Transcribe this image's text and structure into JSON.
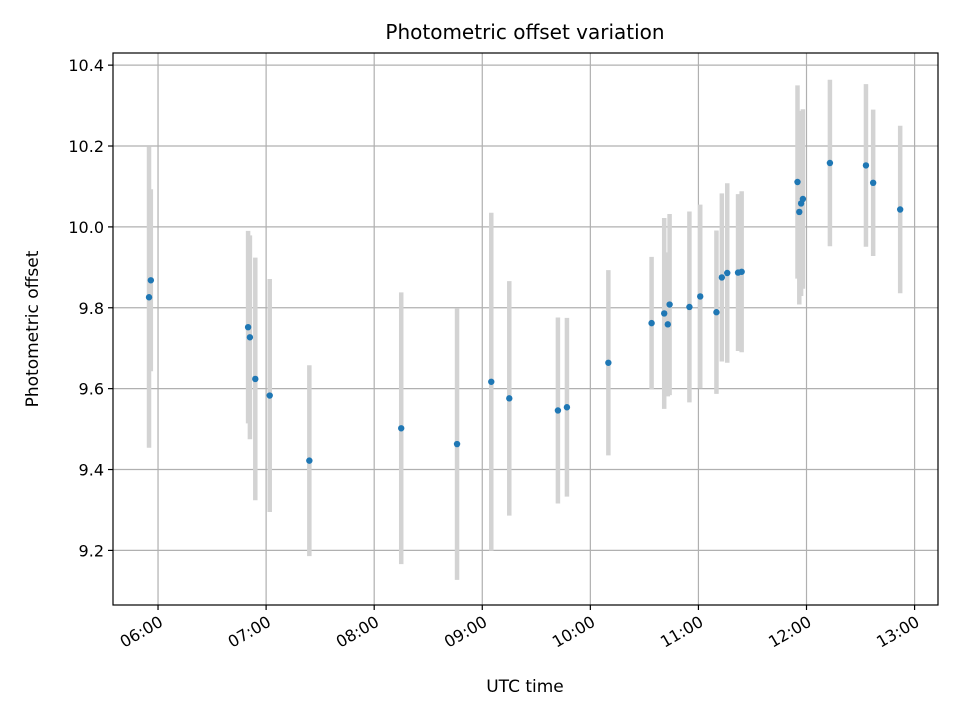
{
  "chart_data": {
    "type": "scatter",
    "title": "Photometric offset variation",
    "xlabel": "UTC time",
    "ylabel": "Photometric offset",
    "xlim": [
      "05:35",
      "13:13"
    ],
    "ylim": [
      9.065,
      10.43
    ],
    "x_ticks": [
      "06:00",
      "07:00",
      "08:00",
      "09:00",
      "10:00",
      "11:00",
      "12:00",
      "13:00"
    ],
    "y_ticks": [
      9.2,
      9.4,
      9.6,
      9.8,
      10.0,
      10.2,
      10.4
    ],
    "y_tick_labels": [
      "9.2",
      "9.4",
      "9.6",
      "9.8",
      "10.0",
      "10.2",
      "10.4"
    ],
    "grid": true,
    "colors": {
      "point": "#1f77b4",
      "errorbar": "#d3d3d3",
      "grid": "#b0b0b0"
    },
    "series": [
      {
        "points": [
          {
            "x": "05:55",
            "y": 9.826,
            "err": 0.372
          },
          {
            "x": "05:56",
            "y": 9.868,
            "err": 0.225
          },
          {
            "x": "06:50",
            "y": 9.752,
            "err": 0.238
          },
          {
            "x": "06:51",
            "y": 9.727,
            "err": 0.252
          },
          {
            "x": "06:54",
            "y": 9.624,
            "err": 0.3
          },
          {
            "x": "07:02",
            "y": 9.583,
            "err": 0.288
          },
          {
            "x": "07:24",
            "y": 9.422,
            "err": 0.236
          },
          {
            "x": "08:15",
            "y": 9.502,
            "err": 0.336
          },
          {
            "x": "08:46",
            "y": 9.463,
            "err": 0.336
          },
          {
            "x": "09:05",
            "y": 9.617,
            "err": 0.418
          },
          {
            "x": "09:15",
            "y": 9.576,
            "err": 0.29
          },
          {
            "x": "09:42",
            "y": 9.546,
            "err": 0.23
          },
          {
            "x": "09:47",
            "y": 9.554,
            "err": 0.221
          },
          {
            "x": "10:10",
            "y": 9.664,
            "err": 0.229
          },
          {
            "x": "10:34",
            "y": 9.762,
            "err": 0.164
          },
          {
            "x": "10:41",
            "y": 9.786,
            "err": 0.236
          },
          {
            "x": "10:43",
            "y": 9.759,
            "err": 0.178
          },
          {
            "x": "10:44",
            "y": 9.808,
            "err": 0.224
          },
          {
            "x": "10:55",
            "y": 9.802,
            "err": 0.236
          },
          {
            "x": "11:01",
            "y": 9.828,
            "err": 0.227
          },
          {
            "x": "11:10",
            "y": 9.789,
            "err": 0.202
          },
          {
            "x": "11:13",
            "y": 9.875,
            "err": 0.208
          },
          {
            "x": "11:16",
            "y": 9.886,
            "err": 0.222
          },
          {
            "x": "11:22",
            "y": 9.887,
            "err": 0.194
          },
          {
            "x": "11:24",
            "y": 9.889,
            "err": 0.199
          },
          {
            "x": "11:55",
            "y": 10.111,
            "err": 0.239
          },
          {
            "x": "11:56",
            "y": 10.037,
            "err": 0.229
          },
          {
            "x": "11:57",
            "y": 10.058,
            "err": 0.229
          },
          {
            "x": "11:58",
            "y": 10.069,
            "err": 0.222
          },
          {
            "x": "12:13",
            "y": 10.158,
            "err": 0.206
          },
          {
            "x": "12:33",
            "y": 10.152,
            "err": 0.201
          },
          {
            "x": "12:37",
            "y": 10.109,
            "err": 0.181
          },
          {
            "x": "12:52",
            "y": 10.043,
            "err": 0.207
          }
        ]
      }
    ]
  }
}
